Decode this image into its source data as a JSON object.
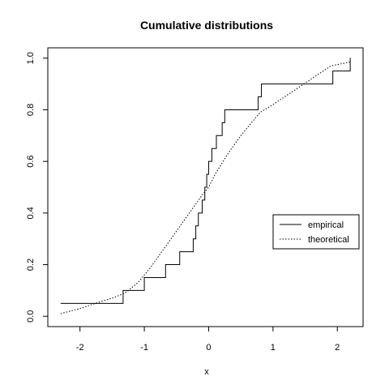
{
  "chart_data": {
    "type": "line",
    "title": "Cumulative distributions",
    "xlabel": "x",
    "ylabel": "",
    "xlim": [
      -2.5,
      2.4
    ],
    "ylim": [
      -0.04,
      1.04
    ],
    "x_ticks": [
      -2,
      -1,
      0,
      1,
      2
    ],
    "y_ticks": [
      0.0,
      0.2,
      0.4,
      0.6,
      0.8,
      1.0
    ],
    "x_tick_labels": [
      "-2",
      "-1",
      "0",
      "1",
      "2"
    ],
    "y_tick_labels": [
      "0.0",
      "0.2",
      "0.4",
      "0.6",
      "0.8",
      "1.0"
    ],
    "grid": false,
    "legend_position": "right",
    "series": [
      {
        "name": "empirical",
        "style": "solid-step",
        "x": [
          -2.3,
          -1.33,
          -1.0,
          -0.67,
          -0.45,
          -0.24,
          -0.2,
          -0.16,
          -0.1,
          -0.06,
          -0.03,
          0.0,
          0.05,
          0.12,
          0.21,
          0.25,
          0.77,
          0.82,
          1.93,
          2.2
        ],
        "y": [
          0.05,
          0.1,
          0.15,
          0.2,
          0.25,
          0.3,
          0.35,
          0.4,
          0.45,
          0.5,
          0.55,
          0.6,
          0.65,
          0.7,
          0.75,
          0.8,
          0.85,
          0.9,
          0.95,
          1.0
        ]
      },
      {
        "name": "theoretical",
        "style": "dotted",
        "x": [
          -2.3,
          -2.0,
          -1.7,
          -1.5,
          -1.3,
          -1.1,
          -0.9,
          -0.7,
          -0.5,
          -0.3,
          -0.1,
          0.0,
          0.1,
          0.3,
          0.5,
          0.8,
          1.0,
          1.3,
          1.6,
          1.9,
          2.2
        ],
        "y": [
          0.01,
          0.03,
          0.055,
          0.07,
          0.09,
          0.13,
          0.19,
          0.26,
          0.33,
          0.4,
          0.47,
          0.5,
          0.55,
          0.63,
          0.7,
          0.79,
          0.82,
          0.87,
          0.92,
          0.97,
          0.985
        ]
      }
    ]
  }
}
